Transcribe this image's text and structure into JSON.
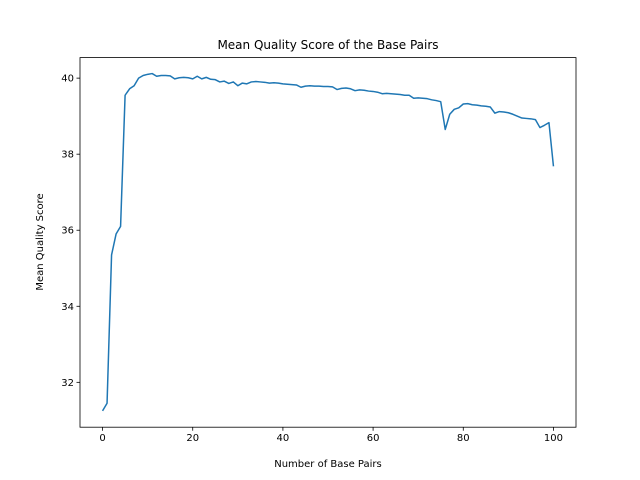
{
  "chart_data": {
    "type": "line",
    "title": "Mean Quality Score of the Base Pairs",
    "x_label": "Number of Base Pairs",
    "y_label": "Mean Quality Score",
    "x": [
      0,
      1,
      2,
      3,
      4,
      5,
      6,
      7,
      8,
      9,
      10,
      11,
      12,
      13,
      14,
      15,
      16,
      17,
      18,
      19,
      20,
      21,
      22,
      23,
      24,
      25,
      26,
      27,
      28,
      29,
      30,
      31,
      32,
      33,
      34,
      35,
      36,
      37,
      38,
      39,
      40,
      41,
      42,
      43,
      44,
      45,
      46,
      47,
      48,
      49,
      50,
      51,
      52,
      53,
      54,
      55,
      56,
      57,
      58,
      59,
      60,
      61,
      62,
      63,
      64,
      65,
      66,
      67,
      68,
      69,
      70,
      71,
      72,
      73,
      74,
      75,
      76,
      77,
      78,
      79,
      80,
      81,
      82,
      83,
      84,
      85,
      86,
      87,
      88,
      89,
      90,
      91,
      92,
      93,
      94,
      95,
      96,
      97,
      98,
      99,
      100
    ],
    "series": [
      {
        "color": "#1f77b4",
        "values": [
          31.25,
          31.45,
          35.35,
          35.9,
          36.1,
          39.55,
          39.72,
          39.8,
          40.0,
          40.07,
          40.1,
          40.12,
          40.05,
          40.07,
          40.07,
          40.06,
          39.98,
          40.01,
          40.02,
          40.01,
          39.98,
          40.05,
          39.98,
          40.02,
          39.97,
          39.96,
          39.9,
          39.92,
          39.86,
          39.9,
          39.8,
          39.87,
          39.85,
          39.9,
          39.91,
          39.9,
          39.89,
          39.87,
          39.88,
          39.87,
          39.85,
          39.84,
          39.83,
          39.82,
          39.76,
          39.79,
          39.8,
          39.79,
          39.79,
          39.78,
          39.78,
          39.77,
          39.7,
          39.73,
          39.74,
          39.72,
          39.67,
          39.69,
          39.68,
          39.66,
          39.65,
          39.63,
          39.59,
          39.6,
          39.59,
          39.58,
          39.57,
          39.55,
          39.55,
          39.47,
          39.48,
          39.47,
          39.46,
          39.43,
          39.41,
          39.38,
          38.65,
          39.05,
          39.18,
          39.22,
          39.32,
          39.33,
          39.3,
          39.29,
          39.27,
          39.26,
          39.24,
          39.08,
          39.12,
          39.11,
          39.09,
          39.05,
          39.0,
          38.95,
          38.94,
          38.93,
          38.91,
          38.7,
          38.76,
          38.83,
          37.68
        ]
      }
    ],
    "xlim": [
      -5,
      105
    ],
    "ylim": [
      30.82,
      40.54
    ],
    "xticks": [
      0,
      20,
      40,
      60,
      80,
      100
    ],
    "yticks": [
      32,
      34,
      36,
      38,
      40
    ],
    "grid": false
  }
}
